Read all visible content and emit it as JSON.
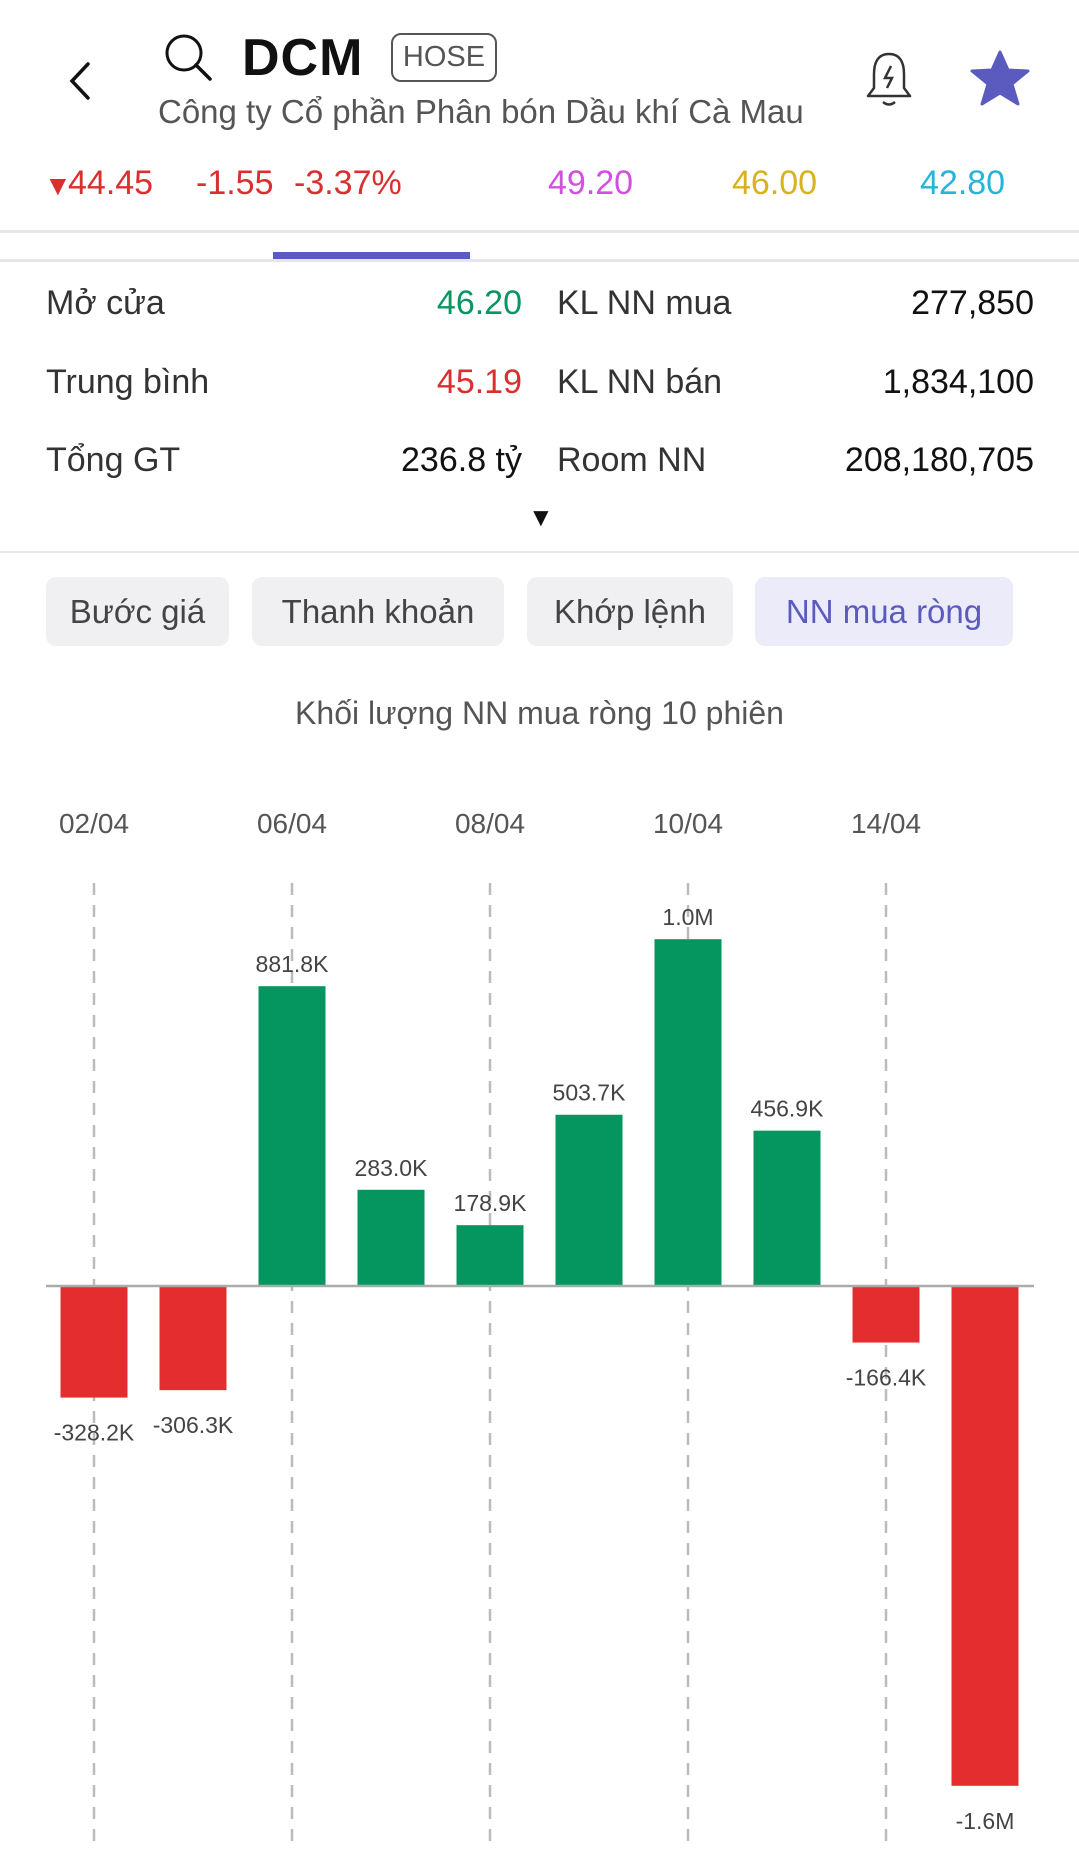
{
  "header": {
    "ticker": "DCM",
    "exchange": "HOSE",
    "company": "Công ty Cổ phần Phân bón Dầu khí Cà Mau"
  },
  "price": {
    "last": "44.45",
    "change": "-1.55",
    "change_pct": "-3.37%",
    "ceiling": "49.20",
    "reference": "46.00",
    "floor": "42.80",
    "colors": {
      "down": "#d9302f",
      "ceiling": "#d24fe0",
      "reference": "#d8b21b",
      "floor": "#27b4d9"
    }
  },
  "stats": {
    "left": [
      {
        "label": "Mở cửa",
        "value": "46.20",
        "color": "#0a9563"
      },
      {
        "label": "Trung bình",
        "value": "45.19",
        "color": "#d9302f"
      },
      {
        "label": "Tổng GT",
        "value": "236.8 tỷ",
        "color": "#111111"
      }
    ],
    "right": [
      {
        "label": "KL NN mua",
        "value": "277,850"
      },
      {
        "label": "KL NN bán",
        "value": "1,834,100"
      },
      {
        "label": "Room NN",
        "value": "208,180,705"
      }
    ]
  },
  "tabs": [
    {
      "label": "Bước giá"
    },
    {
      "label": "Thanh khoản"
    },
    {
      "label": "Khớp lệnh"
    },
    {
      "label": "NN mua ròng",
      "active": true
    }
  ],
  "accent": "#5b5bbf",
  "chart_data": {
    "type": "bar",
    "title": "Khối lượng NN mua ròng 10 phiên",
    "x_ticks": [
      "02/04",
      "06/04",
      "08/04",
      "10/04",
      "14/04"
    ],
    "values": [
      -328200,
      -306300,
      881800,
      283000,
      178900,
      503700,
      1020000,
      456900,
      -166400,
      -1556250
    ],
    "labels": [
      "-328.2K",
      "-306.3K",
      "881.8K",
      "283.0K",
      "178.9K",
      "503.7K",
      "1.0M",
      "456.9K",
      "-166.4K",
      "-1.6M"
    ],
    "ylim": [
      -1470000,
      1100000
    ],
    "grid": "vertical dashed at tick dates",
    "colors": {
      "positive": "#05965f",
      "negative": "#e42d2f"
    }
  }
}
